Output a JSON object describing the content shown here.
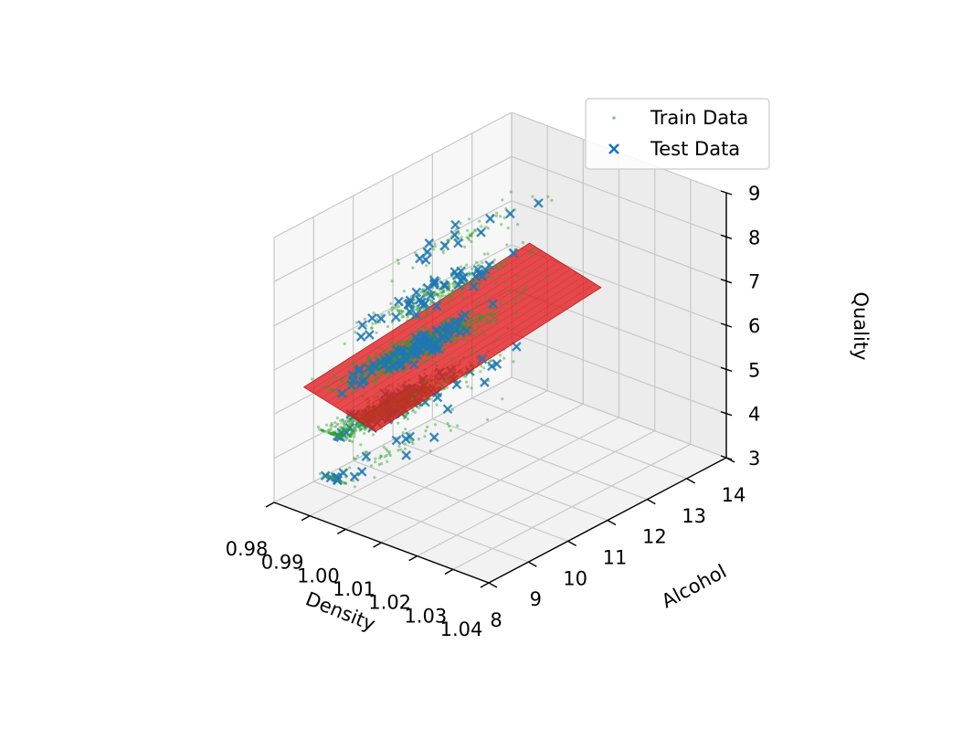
{
  "chart_data": {
    "type": "scatter",
    "projection": "3d",
    "series": [
      {
        "name": "Train Data",
        "marker": "point",
        "color": "#2ca02c"
      },
      {
        "name": "Test Data",
        "marker": "x",
        "color": "#1f77b4"
      }
    ],
    "surface": {
      "kind": "regression-plane",
      "color": "#e31a1c"
    },
    "xlabel": "Density",
    "ylabel": "Alcohol",
    "zlabel": "Quality",
    "xlim": [
      0.98,
      1.04
    ],
    "ylim": [
      8,
      14
    ],
    "zlim": [
      3,
      9
    ],
    "x_ticks": [
      "0.98",
      "0.99",
      "1.00",
      "1.01",
      "1.02",
      "1.03",
      "1.04"
    ],
    "y_ticks": [
      "8",
      "9",
      "10",
      "11",
      "12",
      "13",
      "14"
    ],
    "z_ticks": [
      "3",
      "4",
      "5",
      "6",
      "7",
      "8",
      "9"
    ],
    "quality_levels": [
      4,
      5,
      6,
      7,
      8
    ],
    "legend_position": "top-right",
    "grid": true
  }
}
